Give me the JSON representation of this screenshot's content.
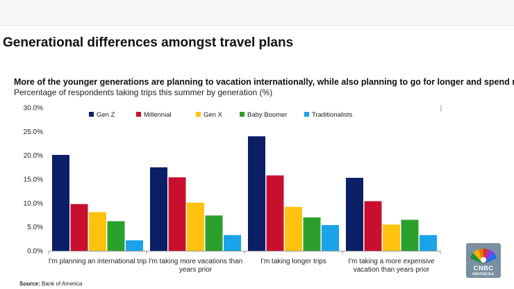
{
  "page": {
    "title": "Generational differences amongst travel plans",
    "source_label": "Source:",
    "source_value": "Bank of America"
  },
  "logo": {
    "name": "CNBC",
    "sub": "INDONESIA"
  },
  "chart_data": {
    "type": "bar",
    "title": "More of the younger generations are planning to vacation internationally, while also planning to go for longer and spend more.",
    "subtitle": "Percentage of respondents taking trips this summer by generation (%)",
    "xlabel": "",
    "ylabel": "",
    "ylim": [
      0,
      30
    ],
    "yticks": [
      "0.0%",
      "5.0%",
      "10.0%",
      "15.0%",
      "20.0%",
      "25.0%",
      "30.0%"
    ],
    "categories": [
      [
        "I'm planning an international trip"
      ],
      [
        "I'm taking more vacations than",
        "years prior"
      ],
      [
        "I'm taking longer trips"
      ],
      [
        "I'm taking a more expensive",
        "vacation than years prior"
      ]
    ],
    "legend_position": "top",
    "grid": false,
    "series": [
      {
        "name": "Gen Z",
        "color": "#0b1f66",
        "values": [
          20.1,
          17.5,
          24.0,
          15.3
        ]
      },
      {
        "name": "Millennial",
        "color": "#c8102e",
        "values": [
          9.8,
          15.4,
          15.8,
          10.4
        ]
      },
      {
        "name": "Gen X",
        "color": "#ffc20e",
        "values": [
          8.1,
          10.1,
          9.2,
          5.5
        ]
      },
      {
        "name": "Baby Boomer",
        "color": "#2ca02c",
        "values": [
          6.2,
          7.4,
          7.0,
          6.5
        ]
      },
      {
        "name": "Traditionalists",
        "color": "#1aa3e8",
        "values": [
          2.2,
          3.3,
          5.4,
          3.3
        ]
      }
    ]
  }
}
